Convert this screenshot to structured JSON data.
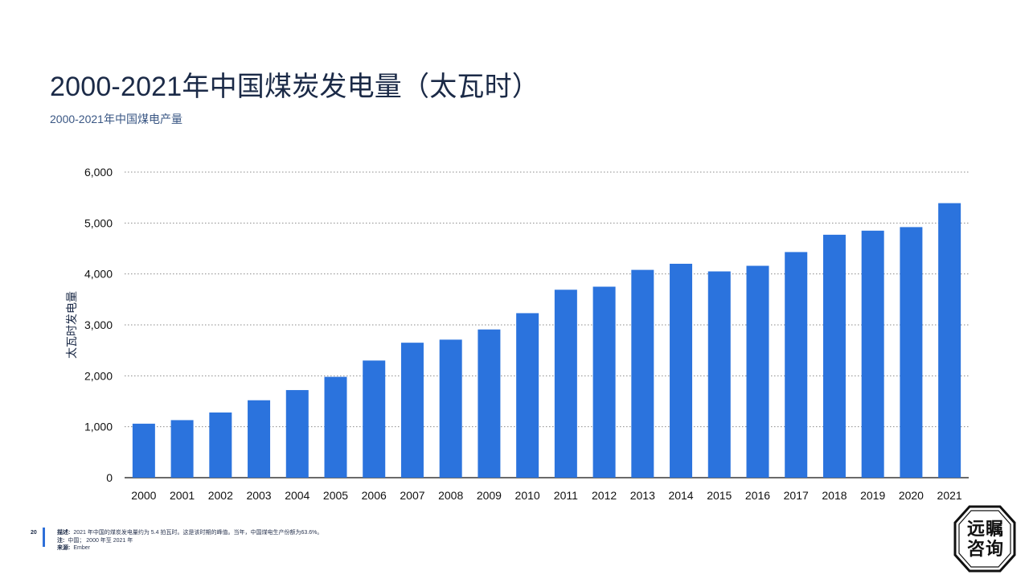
{
  "title": "2000-2021年中国煤炭发电量（太瓦时）",
  "subtitle": "2000-2021年中国煤电产量",
  "footer": {
    "page_number": "20",
    "description_label": "描述:",
    "description_text": "2021 年中国的煤炭发电量约为 5.4 拍瓦时。这是该时期的峰值。当年，中国煤电生产份额为63.6%。",
    "note_label": "注:",
    "note_text": "中国； 2000 年至 2021 年",
    "source_label": "来源:",
    "source_text": "Ember"
  },
  "logo": {
    "line1": "远瞩",
    "line2": "咨询"
  },
  "colors": {
    "bar": "#2b73dd",
    "grid": "#8a8a8a",
    "title": "#1b2a47"
  },
  "chart_data": {
    "type": "bar",
    "ylabel": "太瓦时发电量",
    "ylim": [
      0,
      6000
    ],
    "yticks": [
      0,
      1000,
      2000,
      3000,
      4000,
      5000,
      6000
    ],
    "ytick_labels": [
      "0",
      "1,000",
      "2,000",
      "3,000",
      "4,000",
      "5,000",
      "6,000"
    ],
    "grid": true,
    "categories": [
      "2000",
      "2001",
      "2002",
      "2003",
      "2004",
      "2005",
      "2006",
      "2007",
      "2008",
      "2009",
      "2010",
      "2011",
      "2012",
      "2013",
      "2014",
      "2015",
      "2016",
      "2017",
      "2018",
      "2019",
      "2020",
      "2021"
    ],
    "values": [
      1060,
      1130,
      1280,
      1520,
      1720,
      1980,
      2300,
      2650,
      2710,
      2910,
      3230,
      3690,
      3750,
      4080,
      4200,
      4050,
      4160,
      4430,
      4770,
      4850,
      4920,
      5390
    ]
  }
}
